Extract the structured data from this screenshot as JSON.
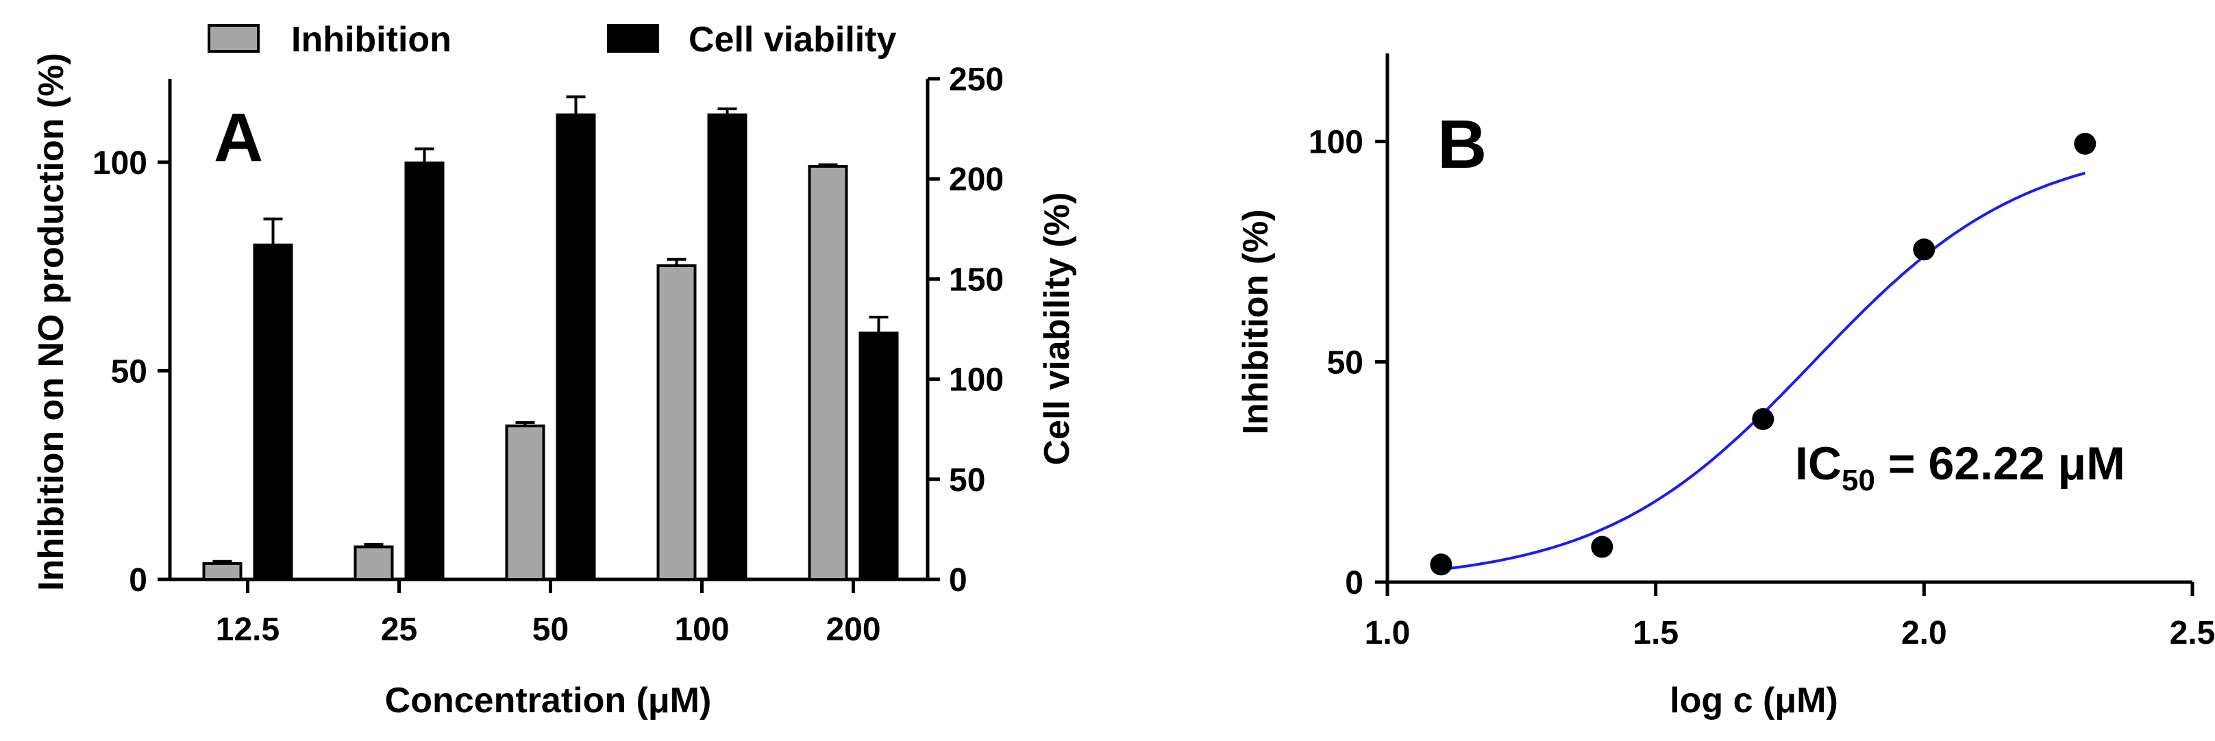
{
  "chart_data": [
    {
      "id": "A",
      "type": "bar",
      "panel_label": "A",
      "categories": [
        "12.5",
        "25",
        "50",
        "100",
        "200"
      ],
      "xlabel": "Concentration (μM)",
      "ylabel": "Inhibition on NO production (%)",
      "y2label": "Cell viability (%)",
      "ylim": [
        0,
        120
      ],
      "y2lim": [
        0,
        250
      ],
      "yticks": [
        "0",
        "50",
        "100"
      ],
      "y2ticks": [
        "0",
        "50",
        "100",
        "150",
        "200",
        "250"
      ],
      "legend_position": "top",
      "series": [
        {
          "name": "Inhibition",
          "axis": "left",
          "color": "#a6a6a6",
          "values": [
            3.8,
            7.8,
            36.8,
            75.2,
            99.0
          ],
          "errors": [
            0.5,
            0.6,
            0.8,
            1.5,
            0.4
          ]
        },
        {
          "name": "Cell viability",
          "axis": "right",
          "color": "#000000",
          "values": [
            167,
            208,
            232,
            232,
            123
          ],
          "errors": [
            13,
            7,
            9,
            3,
            8
          ]
        }
      ]
    },
    {
      "id": "B",
      "type": "scatter",
      "panel_label": "B",
      "xlabel": "log c (μM)",
      "ylabel": "Inhibition (%)",
      "xlim": [
        1.0,
        2.5
      ],
      "ylim": [
        0,
        120
      ],
      "xticks": [
        "1.0",
        "1.5",
        "2.0",
        "2.5"
      ],
      "yticks": [
        "0",
        "50",
        "100"
      ],
      "points": {
        "x": [
          1.1,
          1.4,
          1.7,
          2.0,
          2.3
        ],
        "y": [
          4.0,
          8.0,
          37.0,
          75.5,
          99.5
        ]
      },
      "fit": {
        "type": "sigmoid",
        "color": "#1a1aff",
        "ic50_log": 1.794,
        "hill": 2.2,
        "bottom": 0,
        "top": 100
      },
      "annotation": {
        "prefix": "IC",
        "subscript": "50",
        "suffix": " = 62.22 μM"
      }
    }
  ]
}
